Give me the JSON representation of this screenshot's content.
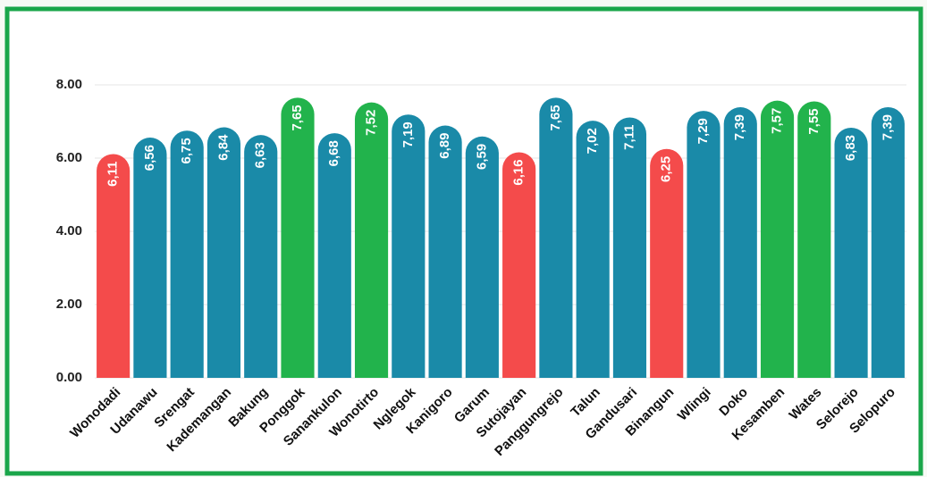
{
  "chart_data": {
    "type": "bar",
    "categories": [
      "Wonodadi",
      "Udanawu",
      "Srengat",
      "Kademangan",
      "Bakung",
      "Ponggok",
      "Sanankulon",
      "Wonotirto",
      "Nglegok",
      "Kanigoro",
      "Garum",
      "Sutojayan",
      "Panggungrejo",
      "Talun",
      "Gandusari",
      "Binangun",
      "Wlingi",
      "Doko",
      "Kesamben",
      "Wates",
      "Selorejo",
      "Selopuro"
    ],
    "values": [
      6.11,
      6.56,
      6.75,
      6.84,
      6.63,
      7.65,
      6.68,
      7.52,
      7.19,
      6.89,
      6.59,
      6.16,
      7.65,
      7.02,
      7.11,
      6.25,
      7.29,
      7.39,
      7.57,
      7.55,
      6.83,
      7.39
    ],
    "value_labels": [
      "6,11",
      "6,56",
      "6,75",
      "6,84",
      "6,63",
      "7,65",
      "6,68",
      "7,52",
      "7,19",
      "6,89",
      "6,59",
      "6,16",
      "7,65",
      "7,02",
      "7,11",
      "6,25",
      "7,29",
      "7,39",
      "7,57",
      "7,55",
      "6,83",
      "7,39"
    ],
    "colors": [
      "#f44b4b",
      "#1a8aa8",
      "#1a8aa8",
      "#1a8aa8",
      "#1a8aa8",
      "#22b34c",
      "#1a8aa8",
      "#22b34c",
      "#1a8aa8",
      "#1a8aa8",
      "#1a8aa8",
      "#f44b4b",
      "#1a8aa8",
      "#1a8aa8",
      "#1a8aa8",
      "#f44b4b",
      "#1a8aa8",
      "#1a8aa8",
      "#22b34c",
      "#22b34c",
      "#1a8aa8",
      "#1a8aa8"
    ],
    "ylim": [
      0,
      8
    ],
    "yticks": [
      {
        "value": 0,
        "label": "0.00"
      },
      {
        "value": 2,
        "label": "2.00"
      },
      {
        "value": 4,
        "label": "4.00"
      },
      {
        "value": 6,
        "label": "6.00"
      },
      {
        "value": 8,
        "label": "8.00"
      }
    ],
    "grid": true
  }
}
